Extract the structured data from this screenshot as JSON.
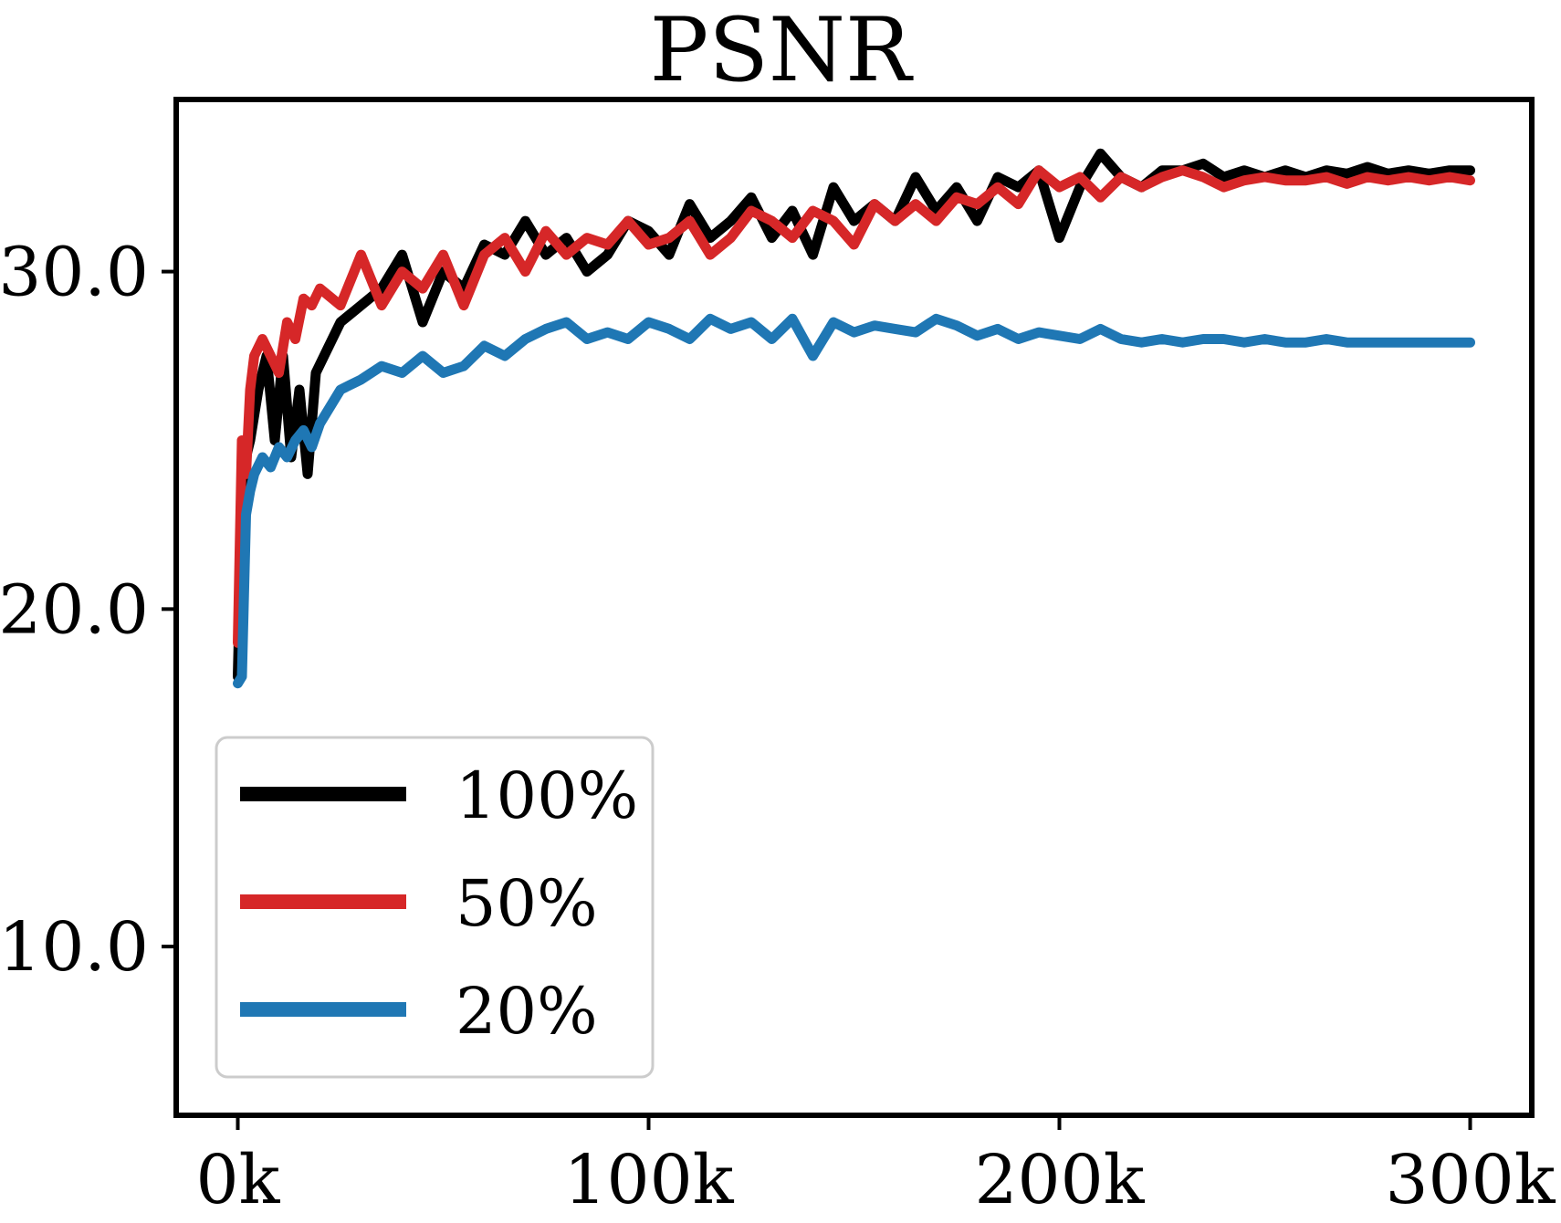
{
  "chart_data": {
    "type": "line",
    "title": "PSNR",
    "xlabel": "",
    "ylabel": "",
    "xlim": [
      -15000,
      315000
    ],
    "ylim": [
      5.0,
      35.1
    ],
    "x_ticks": [
      0,
      100000,
      200000,
      300000
    ],
    "x_tick_labels": [
      "0k",
      "100k",
      "200k",
      "300k"
    ],
    "y_ticks": [
      10.0,
      20.0,
      30.0
    ],
    "y_tick_labels": [
      "10.0",
      "20.0",
      "30.0"
    ],
    "grid": false,
    "legend_position": "lower-left",
    "series": [
      {
        "name": "100%",
        "color": "#000000",
        "x": [
          0,
          1000,
          2000,
          3000,
          5000,
          7000,
          9000,
          11000,
          13000,
          15000,
          17000,
          19000,
          21000,
          25000,
          30000,
          35000,
          40000,
          45000,
          50000,
          55000,
          60000,
          65000,
          70000,
          75000,
          80000,
          85000,
          90000,
          95000,
          100000,
          105000,
          110000,
          115000,
          120000,
          125000,
          130000,
          135000,
          140000,
          145000,
          150000,
          155000,
          160000,
          165000,
          170000,
          175000,
          180000,
          185000,
          190000,
          195000,
          200000,
          205000,
          210000,
          215000,
          220000,
          225000,
          230000,
          235000,
          240000,
          245000,
          250000,
          255000,
          260000,
          265000,
          270000,
          275000,
          280000,
          285000,
          290000,
          295000,
          300000
        ],
        "y": [
          18.0,
          23.0,
          24.5,
          25.0,
          26.5,
          27.5,
          25.0,
          27.5,
          24.5,
          26.5,
          24.0,
          27.0,
          27.5,
          28.5,
          29.0,
          29.5,
          30.5,
          28.5,
          30.0,
          29.5,
          30.8,
          30.5,
          31.5,
          30.5,
          31.0,
          30.0,
          30.5,
          31.5,
          31.2,
          30.5,
          32.0,
          31.0,
          31.5,
          32.2,
          31.0,
          31.8,
          30.5,
          32.5,
          31.5,
          32.0,
          31.5,
          32.8,
          31.8,
          32.5,
          31.5,
          32.8,
          32.5,
          33.0,
          31.0,
          32.5,
          33.5,
          32.8,
          32.5,
          33.0,
          33.0,
          33.2,
          32.8,
          33.0,
          32.8,
          33.0,
          32.8,
          33.0,
          32.9,
          33.1,
          32.9,
          33.0,
          32.9,
          33.0,
          33.0
        ]
      },
      {
        "name": "50%",
        "color": "#d62728",
        "x": [
          0,
          1000,
          2000,
          3000,
          4000,
          6000,
          8000,
          10000,
          12000,
          14000,
          16000,
          18000,
          20000,
          25000,
          30000,
          35000,
          40000,
          45000,
          50000,
          55000,
          60000,
          65000,
          70000,
          75000,
          80000,
          85000,
          90000,
          95000,
          100000,
          105000,
          110000,
          115000,
          120000,
          125000,
          130000,
          135000,
          140000,
          145000,
          150000,
          155000,
          160000,
          165000,
          170000,
          175000,
          180000,
          185000,
          190000,
          195000,
          200000,
          205000,
          210000,
          215000,
          220000,
          225000,
          230000,
          235000,
          240000,
          245000,
          250000,
          255000,
          260000,
          265000,
          270000,
          275000,
          280000,
          285000,
          290000,
          295000,
          300000
        ],
        "y": [
          19.0,
          25.0,
          24.0,
          26.5,
          27.5,
          28.0,
          27.5,
          27.0,
          28.5,
          28.0,
          29.2,
          29.0,
          29.5,
          29.0,
          30.5,
          29.0,
          30.0,
          29.5,
          30.5,
          29.0,
          30.5,
          31.0,
          30.0,
          31.2,
          30.5,
          31.0,
          30.8,
          31.5,
          30.8,
          31.0,
          31.5,
          30.5,
          31.0,
          31.8,
          31.5,
          31.0,
          31.8,
          31.5,
          30.8,
          32.0,
          31.5,
          32.0,
          31.5,
          32.2,
          32.0,
          32.5,
          32.0,
          33.0,
          32.5,
          32.8,
          32.2,
          32.8,
          32.5,
          32.8,
          33.0,
          32.8,
          32.5,
          32.7,
          32.8,
          32.7,
          32.7,
          32.8,
          32.6,
          32.8,
          32.7,
          32.8,
          32.7,
          32.8,
          32.7
        ]
      },
      {
        "name": "20%",
        "color": "#1f77b4",
        "x": [
          0,
          1000,
          2000,
          3000,
          4000,
          6000,
          8000,
          10000,
          12000,
          14000,
          16000,
          18000,
          20000,
          25000,
          30000,
          35000,
          40000,
          45000,
          50000,
          55000,
          60000,
          65000,
          70000,
          75000,
          80000,
          85000,
          90000,
          95000,
          100000,
          105000,
          110000,
          115000,
          120000,
          125000,
          130000,
          135000,
          140000,
          145000,
          150000,
          155000,
          160000,
          165000,
          170000,
          175000,
          180000,
          185000,
          190000,
          195000,
          200000,
          205000,
          210000,
          215000,
          220000,
          225000,
          230000,
          235000,
          240000,
          245000,
          250000,
          255000,
          260000,
          265000,
          270000,
          275000,
          280000,
          285000,
          290000,
          295000,
          300000
        ],
        "y": [
          17.8,
          18.0,
          22.8,
          23.5,
          24.0,
          24.5,
          24.2,
          24.8,
          24.5,
          25.0,
          25.3,
          24.8,
          25.5,
          26.5,
          26.8,
          27.2,
          27.0,
          27.5,
          27.0,
          27.2,
          27.8,
          27.5,
          28.0,
          28.3,
          28.5,
          28.0,
          28.2,
          28.0,
          28.5,
          28.3,
          28.0,
          28.6,
          28.3,
          28.5,
          28.0,
          28.6,
          27.5,
          28.5,
          28.2,
          28.4,
          28.3,
          28.2,
          28.6,
          28.4,
          28.1,
          28.3,
          28.0,
          28.2,
          28.1,
          28.0,
          28.3,
          28.0,
          27.9,
          28.0,
          27.9,
          28.0,
          28.0,
          27.9,
          28.0,
          27.9,
          27.9,
          28.0,
          27.9,
          27.9,
          27.9,
          27.9,
          27.9,
          27.9,
          27.9
        ]
      }
    ]
  }
}
